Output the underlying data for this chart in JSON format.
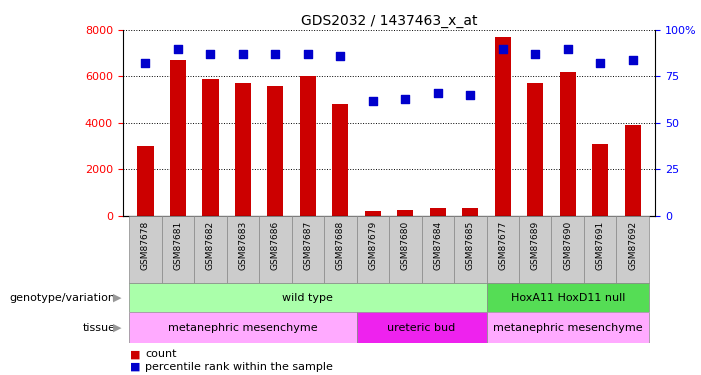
{
  "title": "GDS2032 / 1437463_x_at",
  "samples": [
    "GSM87678",
    "GSM87681",
    "GSM87682",
    "GSM87683",
    "GSM87686",
    "GSM87687",
    "GSM87688",
    "GSM87679",
    "GSM87680",
    "GSM87684",
    "GSM87685",
    "GSM87677",
    "GSM87689",
    "GSM87690",
    "GSM87691",
    "GSM87692"
  ],
  "counts": [
    3000,
    6700,
    5900,
    5700,
    5600,
    6000,
    4800,
    200,
    250,
    350,
    350,
    7700,
    5700,
    6200,
    3100,
    3900
  ],
  "percentile": [
    82,
    90,
    87,
    87,
    87,
    87,
    86,
    62,
    63,
    66,
    65,
    90,
    87,
    90,
    82,
    84
  ],
  "bar_color": "#cc0000",
  "dot_color": "#0000cc",
  "ylim_left": [
    0,
    8000
  ],
  "yticks_left": [
    0,
    2000,
    4000,
    6000,
    8000
  ],
  "yticks_right": [
    0,
    25,
    50,
    75,
    100
  ],
  "ytick_labels_right": [
    "0",
    "25",
    "50",
    "75",
    "100%"
  ],
  "genotype_labels": [
    {
      "text": "wild type",
      "start": 0,
      "end": 10,
      "color": "#aaffaa"
    },
    {
      "text": "HoxA11 HoxD11 null",
      "start": 11,
      "end": 15,
      "color": "#55dd55"
    }
  ],
  "tissue_labels": [
    {
      "text": "metanephric mesenchyme",
      "start": 0,
      "end": 6,
      "color": "#ffaaff"
    },
    {
      "text": "ureteric bud",
      "start": 7,
      "end": 10,
      "color": "#ee22ee"
    },
    {
      "text": "metanephric mesenchyme",
      "start": 11,
      "end": 15,
      "color": "#ffaaff"
    }
  ],
  "row_label_genotype": "genotype/variation",
  "row_label_tissue": "tissue",
  "legend_count_color": "#cc0000",
  "legend_pct_color": "#0000cc",
  "legend_count_label": "count",
  "legend_pct_label": "percentile rank within the sample",
  "bar_width": 0.5,
  "dot_size": 30
}
